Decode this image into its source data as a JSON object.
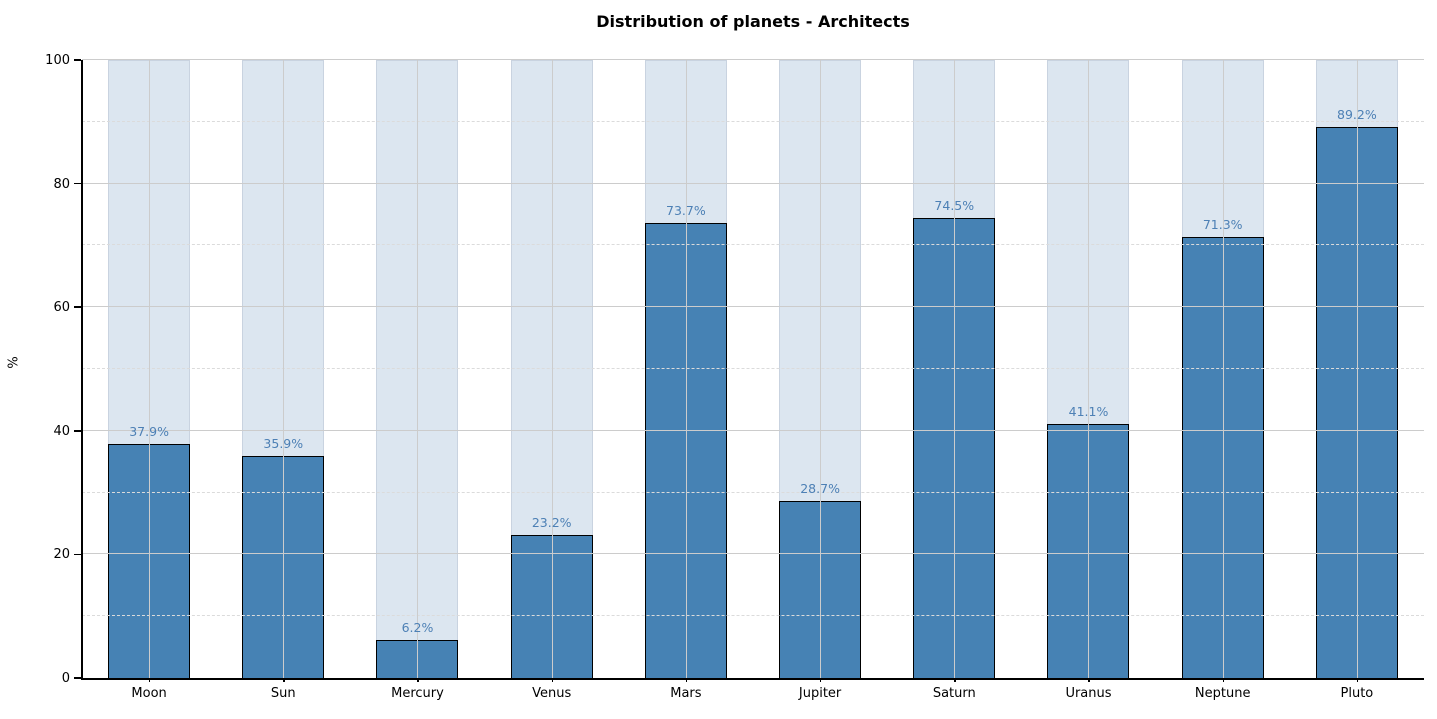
{
  "chart_data": {
    "type": "bar",
    "title": "Distribution of planets - Architects",
    "xlabel": "",
    "ylabel": "%",
    "categories": [
      "Moon",
      "Sun",
      "Mercury",
      "Venus",
      "Mars",
      "Jupiter",
      "Saturn",
      "Uranus",
      "Neptune",
      "Pluto"
    ],
    "values": [
      37.9,
      35.9,
      6.2,
      23.2,
      73.7,
      28.7,
      74.5,
      41.1,
      71.3,
      89.2
    ],
    "value_labels": [
      "37.9%",
      "35.9%",
      "6.2%",
      "23.2%",
      "73.7%",
      "28.7%",
      "74.5%",
      "41.1%",
      "71.3%",
      "89.2%"
    ],
    "background_bar_value": 100,
    "ylim": [
      0,
      100
    ],
    "yticks": [
      0,
      20,
      40,
      60,
      80,
      100
    ],
    "minor_yticks": [
      10,
      30,
      50,
      70,
      90
    ],
    "grid": true,
    "legend_position": "none",
    "colors": {
      "bar_fill": "#4682b4",
      "bar_edge": "#000000",
      "background_bar_fill": "#dce6f0",
      "background_bar_edge": "#c9d3e0",
      "value_label": "#4d80b5",
      "major_grid": "#cccccc",
      "minor_grid": "#dbdbdb",
      "vertical_grid": "#cccccc",
      "axis": "#000000",
      "tick_label": "#000000",
      "title": "#000000"
    }
  }
}
